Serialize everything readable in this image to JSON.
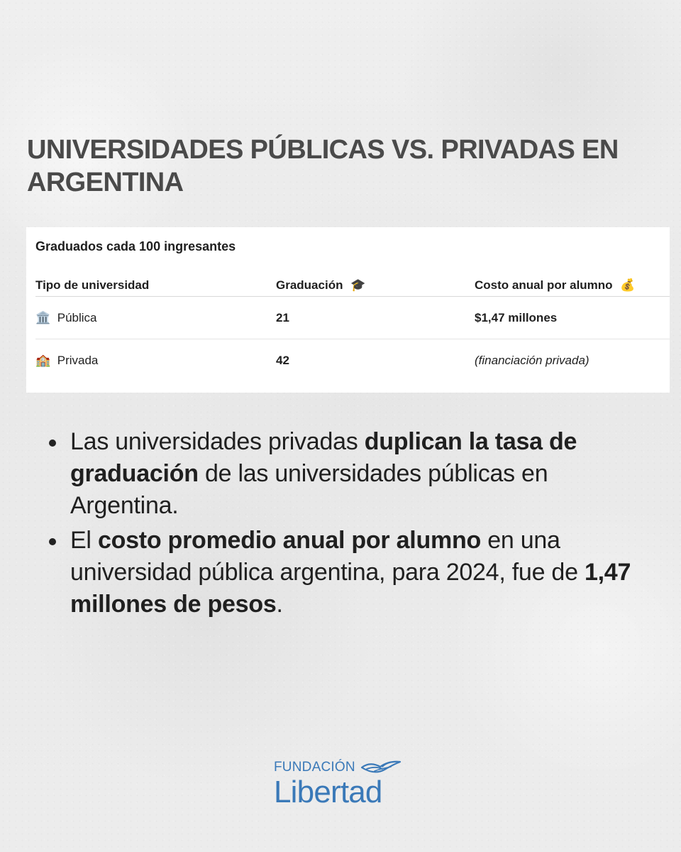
{
  "page": {
    "title": "UNIVERSIDADES PÚBLICAS VS. PRIVADAS EN ARGENTINA"
  },
  "table": {
    "title": "Graduados cada 100 ingresantes",
    "headers": {
      "tipo": "Tipo de universidad",
      "graduacion": "Graduación",
      "costo": "Costo anual por alumno"
    },
    "header_icons": {
      "graduacion": "graduation-cap-icon",
      "costo": "money-bag-icon"
    },
    "rows": [
      {
        "icon": "classical-building-icon",
        "tipo": "Pública",
        "graduacion": "21",
        "costo": "$1,47 millones"
      },
      {
        "icon": "school-icon",
        "tipo": "Privada",
        "graduacion": "42",
        "costo": "(financiación privada)"
      }
    ]
  },
  "bullets": [
    {
      "part1": "Las universidades privadas ",
      "bold1": "duplican la tasa de graduación",
      "part2": " de las universidades públicas en Argentina."
    },
    {
      "part1": "El ",
      "bold1": "costo promedio anual por alumno",
      "part2": " en una universidad pública argentina, para 2024, fue de ",
      "bold2": "1,47 millones de pesos",
      "part3": "."
    }
  ],
  "brand": {
    "top": "FUNDACIÓN",
    "main": "Libertad",
    "icon": "dove-icon",
    "color": "#3a79b8"
  }
}
